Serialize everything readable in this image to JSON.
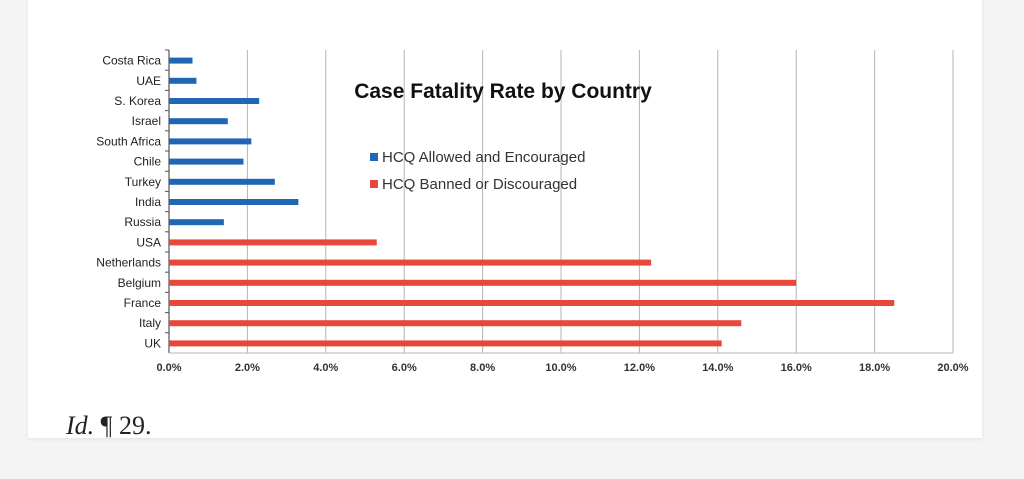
{
  "chart_data": {
    "type": "bar",
    "orientation": "horizontal",
    "title": "Case Fatality Rate by Country",
    "categories": [
      "Costa Rica",
      "UAE",
      "S. Korea",
      "Israel",
      "South Africa",
      "Chile",
      "Turkey",
      "India",
      "Russia",
      "USA",
      "Netherlands",
      "Belgium",
      "France",
      "Italy",
      "UK"
    ],
    "values": [
      0.6,
      0.7,
      2.3,
      1.5,
      2.1,
      1.9,
      2.7,
      3.3,
      1.4,
      5.3,
      12.3,
      16.0,
      18.5,
      14.6,
      14.1
    ],
    "groups": [
      "allowed",
      "allowed",
      "allowed",
      "allowed",
      "allowed",
      "allowed",
      "allowed",
      "allowed",
      "allowed",
      "banned",
      "banned",
      "banned",
      "banned",
      "banned",
      "banned"
    ],
    "series": [
      {
        "key": "allowed",
        "name": "HCQ Allowed and Encouraged",
        "color": "#1f66b5"
      },
      {
        "key": "banned",
        "name": "HCQ Banned or Discouraged",
        "color": "#e8473c"
      }
    ],
    "xlim": [
      0,
      20
    ],
    "xticks": [
      "0.0%",
      "2.0%",
      "4.0%",
      "6.0%",
      "8.0%",
      "10.0%",
      "12.0%",
      "14.0%",
      "16.0%",
      "18.0%",
      "20.0%"
    ],
    "xlabel": "",
    "ylabel": "",
    "grid": "vertical",
    "legend_position": "upper-center"
  },
  "caption": {
    "id": "Id.",
    "ref": "¶ 29."
  }
}
